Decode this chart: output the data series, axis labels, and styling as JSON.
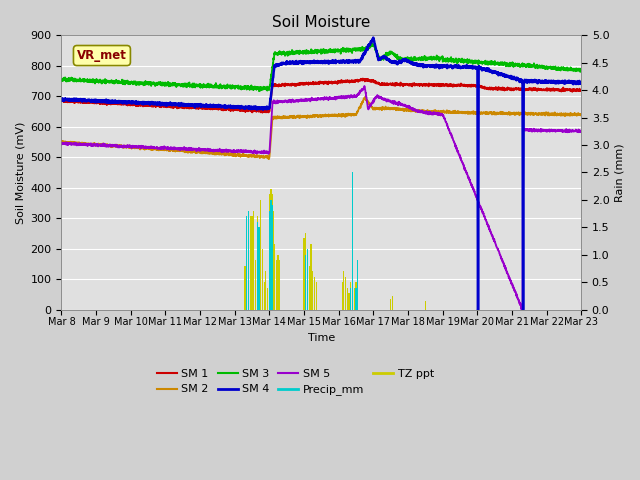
{
  "title": "Soil Moisture",
  "xlabel": "Time",
  "ylabel_left": "Soil Moisture (mV)",
  "ylabel_right": "Rain (mm)",
  "ylim_left": [
    0,
    900
  ],
  "ylim_right": [
    0,
    5.0
  ],
  "annotation": "VR_met",
  "fig_facecolor": "#d0d0d0",
  "ax_facecolor": "#e0e0e0",
  "sm1_color": "#cc0000",
  "sm2_color": "#cc8800",
  "sm3_color": "#00bb00",
  "sm4_color": "#0000cc",
  "sm5_color": "#9900cc",
  "precip_color": "#00cccc",
  "tz_color": "#cccc00",
  "grid_color": "#ffffff",
  "vr_met_facecolor": "#ffffaa",
  "vr_met_edgecolor": "#888800",
  "vr_met_textcolor": "#880000"
}
